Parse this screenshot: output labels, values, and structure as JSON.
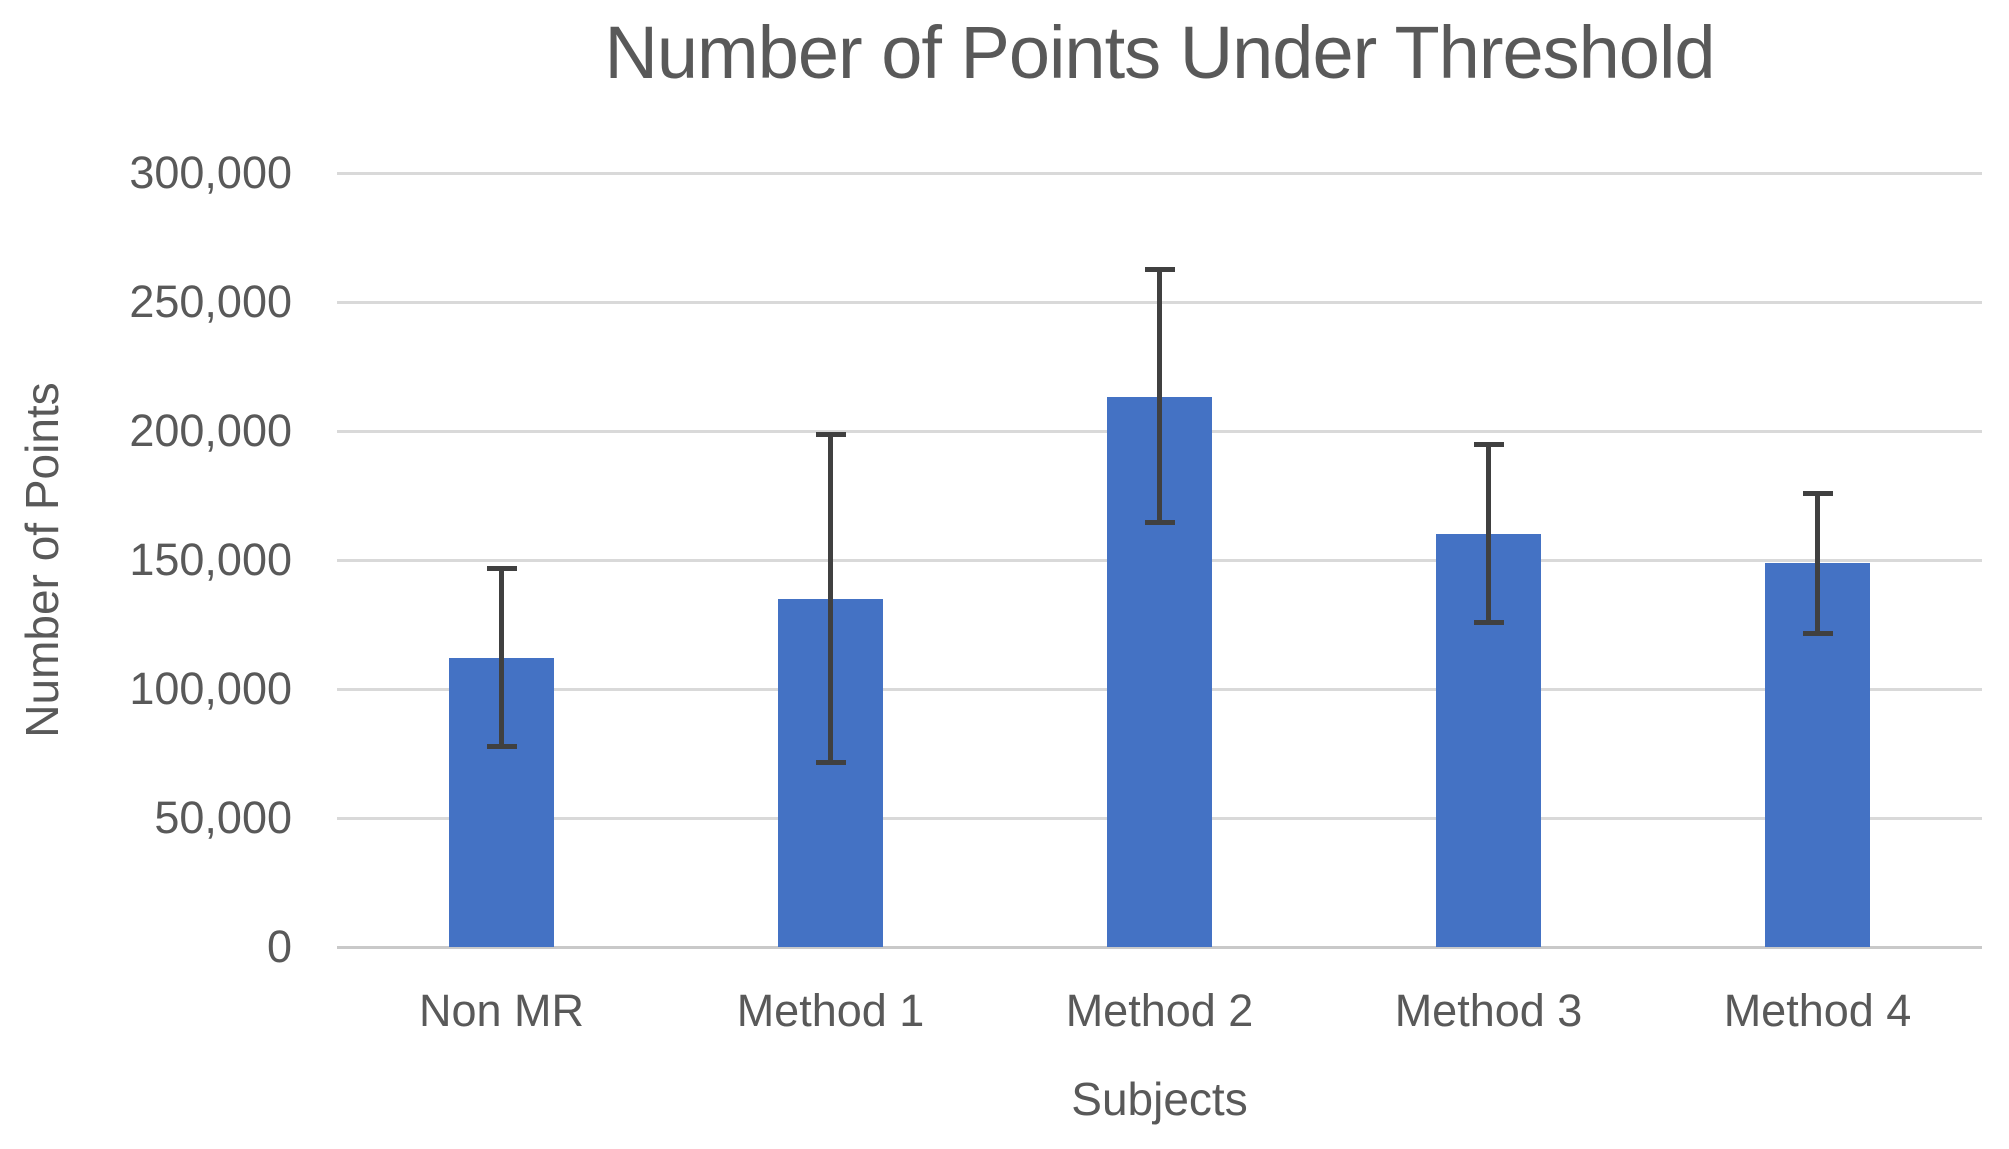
{
  "chart_data": {
    "type": "bar",
    "title": "Number of Points Under Threshold",
    "xlabel": "Subjects",
    "ylabel": "Number of Points",
    "categories": [
      "Non MR",
      "Method 1",
      "Method 2",
      "Method 3",
      "Method 4"
    ],
    "values": [
      112000,
      135000,
      213000,
      160000,
      149000
    ],
    "error_bars": {
      "upper": [
        147000,
        199000,
        263000,
        195000,
        176000
      ],
      "lower": [
        78000,
        72000,
        165000,
        126000,
        122000
      ]
    },
    "ylim": [
      0,
      300000
    ],
    "ytick_interval": 50000,
    "y_tick_values": [
      0,
      50000,
      100000,
      150000,
      200000,
      250000,
      300000
    ],
    "y_tick_labels": [
      "0",
      "50,000",
      "100,000",
      "150,000",
      "200,000",
      "250,000",
      "300,000"
    ],
    "grid": "horizontal",
    "legend": "none",
    "bar_color": "#4472c4",
    "error_bar_color": "#404040",
    "gridline_color": "#d9d9d9",
    "text_color": "#595959"
  }
}
